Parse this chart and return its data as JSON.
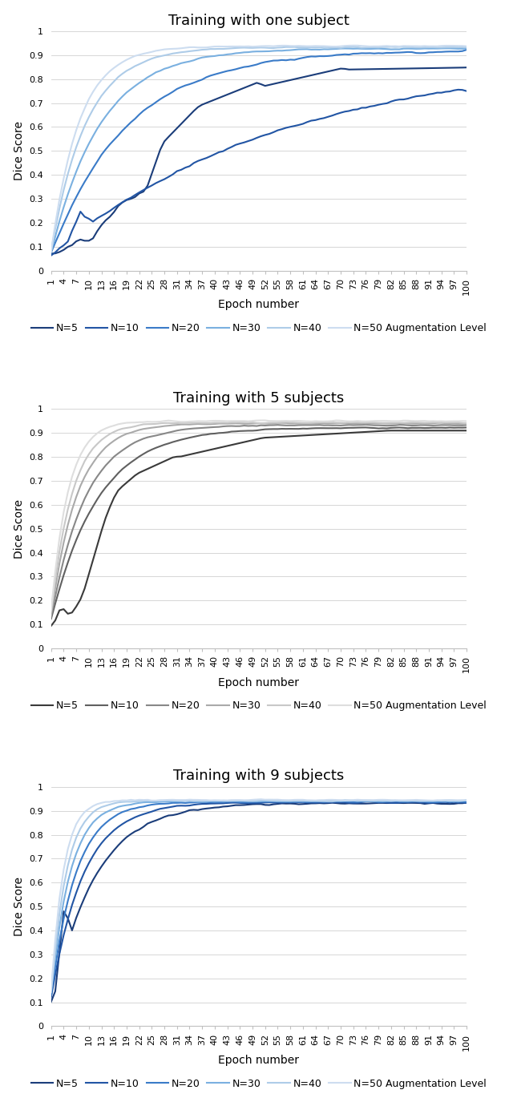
{
  "titles": [
    "Training with one subject",
    "Training with 5 subjects",
    "Training with 9 subjects"
  ],
  "xlabel": "Epoch number",
  "ylabel": "Dice Score",
  "xlim": [
    1,
    100
  ],
  "ylim": [
    0,
    1.0
  ],
  "yticks": [
    0,
    0.1,
    0.2,
    0.3,
    0.4,
    0.5,
    0.6,
    0.7,
    0.8,
    0.9,
    1
  ],
  "ytick_labels": [
    "0",
    "0.1",
    "0.2",
    "0.3",
    "0.4",
    "0.5",
    "0.6",
    "0.7",
    "0.8",
    "0.9",
    "1"
  ],
  "xtick_positions": [
    1,
    4,
    7,
    10,
    13,
    16,
    19,
    22,
    25,
    28,
    31,
    34,
    37,
    40,
    43,
    46,
    49,
    52,
    55,
    58,
    61,
    64,
    67,
    70,
    73,
    76,
    79,
    82,
    85,
    88,
    91,
    94,
    97,
    100
  ],
  "legend_labels": [
    "N=5",
    "N=10",
    "N=20",
    "N=30",
    "N=40",
    "N=50 Augmentation Level"
  ],
  "subplot1_colors": [
    "#1b3d7a",
    "#2255a4",
    "#3a7bc8",
    "#7ab0e0",
    "#aecce8",
    "#cdddf0"
  ],
  "subplot2_colors": [
    "#3a3a3a",
    "#606060",
    "#888888",
    "#aaaaaa",
    "#c8c8c8",
    "#dedede"
  ],
  "subplot3_colors": [
    "#1b3d7a",
    "#2255a4",
    "#3a7bc8",
    "#7ab0e0",
    "#aecce8",
    "#cdddf0"
  ],
  "title_fontsize": 13,
  "axis_label_fontsize": 10,
  "tick_fontsize": 8,
  "legend_fontsize": 9,
  "background_color": "#ffffff",
  "grid_color": "#d0d0d0",
  "border_color": "#c0c0c0"
}
